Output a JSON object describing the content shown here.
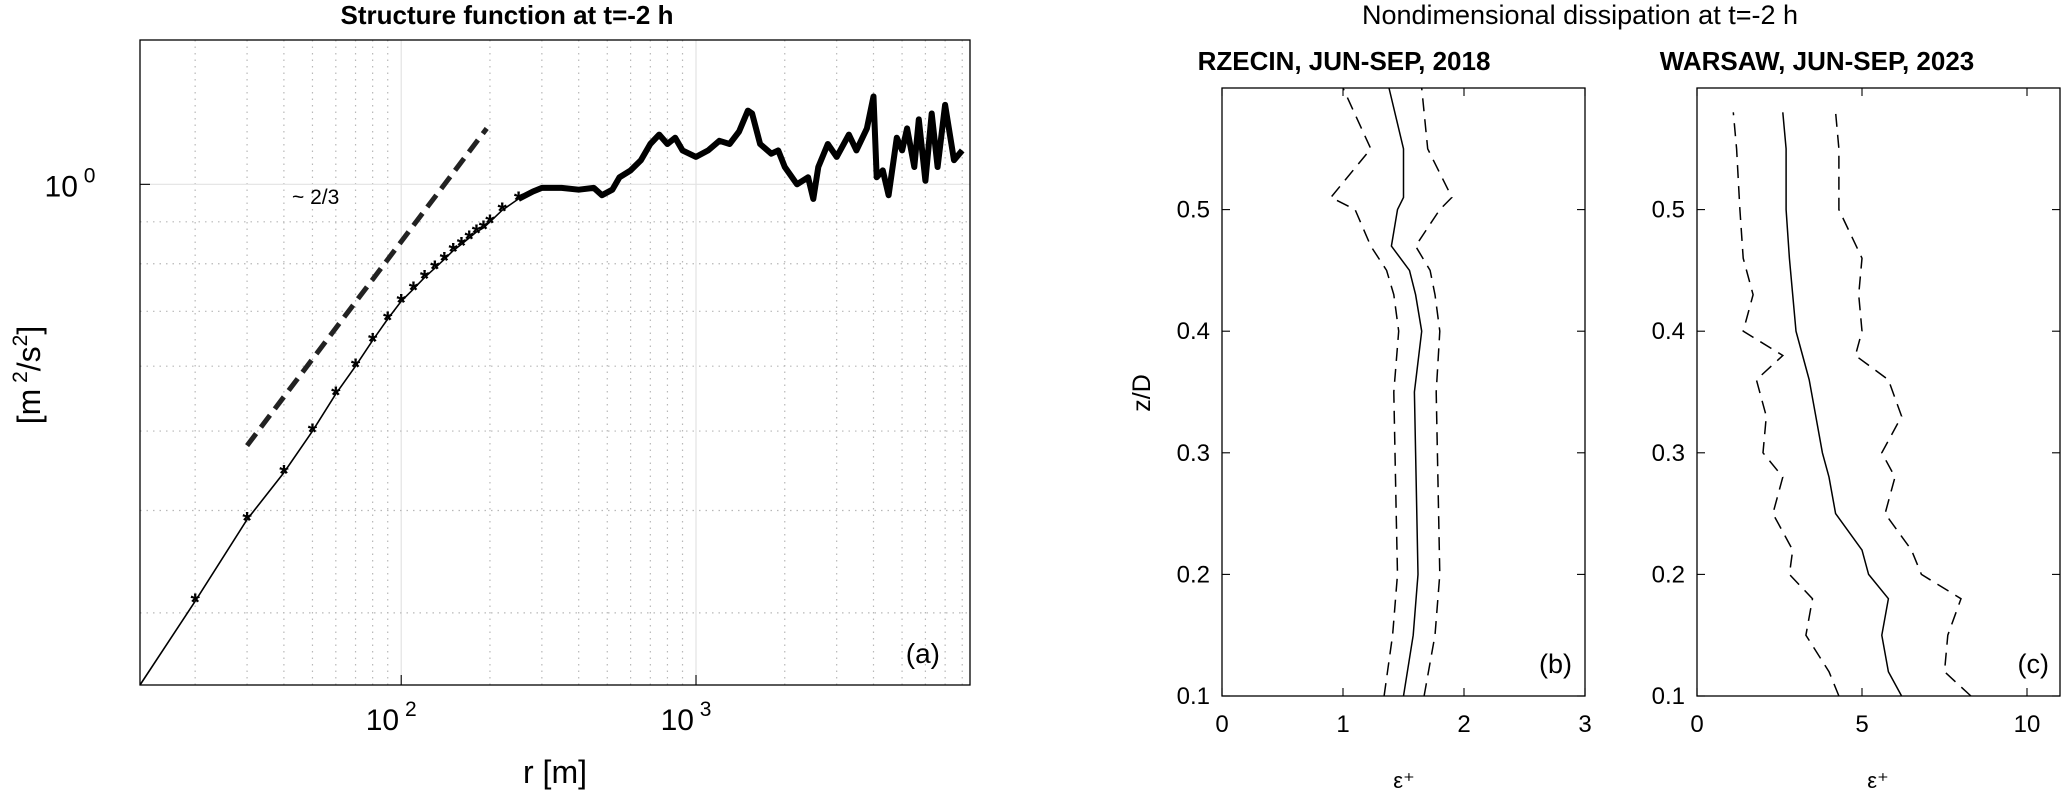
{
  "chart_data": [
    {
      "panel": "a",
      "type": "line",
      "title": "Structure function at t=-2 h",
      "xlabel": "r [m]",
      "ylabel": "[m 2/s2]",
      "x_scale": "log",
      "y_scale": "log",
      "xlim": [
        13,
        8500
      ],
      "ylim": [
        0.245,
        1.5
      ],
      "x_ticks": [
        {
          "value": 100,
          "base": "10",
          "exp": "2"
        },
        {
          "value": 1000,
          "base": "10",
          "exp": "3"
        }
      ],
      "y_ticks": [
        {
          "value": 1,
          "base": "10",
          "exp": "0"
        }
      ],
      "grid": true,
      "panel_label": "(a)",
      "slope_label": "~ 2/3",
      "slope_line": {
        "x": [
          30,
          195
        ],
        "y": [
          0.48,
          1.17
        ]
      },
      "series": [
        {
          "x": [
            13,
            20,
            30,
            40,
            50,
            60,
            70,
            80,
            90,
            100,
            110,
            120,
            130,
            140,
            150,
            160,
            170,
            180,
            190,
            200,
            220,
            250,
            280,
            300,
            350,
            400,
            450,
            480,
            520,
            550,
            600,
            650,
            700,
            750,
            800,
            850,
            900,
            1000,
            1100,
            1200,
            1300,
            1400,
            1500,
            1550,
            1650,
            1800,
            1900,
            2000,
            2200,
            2400,
            2500,
            2600,
            2800,
            3000,
            3300,
            3500,
            3800,
            4000,
            4100,
            4300,
            4500,
            4800,
            5000,
            5200,
            5500,
            5700,
            6000,
            6300,
            6600,
            7000,
            7500,
            8000
          ],
          "y": [
            0.245,
            0.31,
            0.39,
            0.445,
            0.5,
            0.555,
            0.6,
            0.645,
            0.685,
            0.72,
            0.745,
            0.77,
            0.79,
            0.81,
            0.83,
            0.845,
            0.86,
            0.875,
            0.885,
            0.9,
            0.93,
            0.96,
            0.98,
            0.99,
            0.99,
            0.985,
            0.99,
            0.97,
            0.985,
            1.02,
            1.04,
            1.07,
            1.12,
            1.15,
            1.12,
            1.14,
            1.1,
            1.08,
            1.1,
            1.13,
            1.12,
            1.16,
            1.23,
            1.22,
            1.12,
            1.09,
            1.1,
            1.05,
            1.0,
            1.02,
            0.96,
            1.05,
            1.12,
            1.08,
            1.15,
            1.1,
            1.17,
            1.28,
            1.02,
            1.04,
            0.97,
            1.14,
            1.1,
            1.17,
            1.05,
            1.2,
            1.01,
            1.22,
            1.05,
            1.25,
            1.07,
            1.1
          ]
        }
      ]
    },
    {
      "panel": "b",
      "type": "line",
      "suptitle": "Nondimensional dissipation at t=-2 h",
      "title": "RZECIN, JUN-SEP, 2018",
      "xlabel": "ε⁺",
      "ylabel": "z/D",
      "xlim": [
        0,
        3
      ],
      "ylim": [
        0.1,
        0.6
      ],
      "x_ticks": [
        0,
        1,
        2,
        3
      ],
      "y_ticks": [
        0.1,
        0.2,
        0.3,
        0.4,
        0.5
      ],
      "grid": false,
      "panel_label": "(b)",
      "y": [
        0.1,
        0.15,
        0.2,
        0.25,
        0.3,
        0.35,
        0.4,
        0.43,
        0.45,
        0.47,
        0.5,
        0.51,
        0.55,
        0.6
      ],
      "series": [
        {
          "style": "solid",
          "x": [
            1.5,
            1.58,
            1.62,
            1.61,
            1.6,
            1.59,
            1.65,
            1.6,
            1.55,
            1.4,
            1.45,
            1.5,
            1.5,
            1.38
          ]
        },
        {
          "style": "dashed",
          "x": [
            1.34,
            1.41,
            1.45,
            1.44,
            1.43,
            1.42,
            1.46,
            1.42,
            1.36,
            1.23,
            1.1,
            0.9,
            1.23,
            1.0
          ]
        },
        {
          "style": "dashed",
          "x": [
            1.67,
            1.76,
            1.8,
            1.79,
            1.78,
            1.77,
            1.8,
            1.76,
            1.72,
            1.6,
            1.8,
            1.9,
            1.7,
            1.65
          ]
        }
      ]
    },
    {
      "panel": "c",
      "type": "line",
      "title": "WARSAW, JUN-SEP, 2023",
      "xlabel": "ε⁺",
      "ylabel": "",
      "xlim": [
        0,
        11
      ],
      "ylim": [
        0.1,
        0.6
      ],
      "x_ticks": [
        0,
        5,
        10
      ],
      "y_ticks": [
        0.1,
        0.2,
        0.3,
        0.4,
        0.5
      ],
      "grid": false,
      "panel_label": "(c)",
      "y": [
        0.1,
        0.12,
        0.15,
        0.18,
        0.2,
        0.22,
        0.25,
        0.28,
        0.3,
        0.33,
        0.36,
        0.38,
        0.4,
        0.43,
        0.46,
        0.5,
        0.55,
        0.58
      ],
      "series": [
        {
          "style": "solid",
          "x": [
            6.2,
            5.8,
            5.6,
            5.8,
            5.2,
            5.0,
            4.2,
            4.0,
            3.8,
            3.6,
            3.4,
            3.2,
            3.0,
            2.9,
            2.8,
            2.7,
            2.7,
            2.6
          ]
        },
        {
          "style": "dashed",
          "x": [
            4.3,
            4.0,
            3.3,
            3.5,
            2.8,
            2.9,
            2.3,
            2.6,
            2.0,
            2.1,
            1.8,
            2.6,
            1.4,
            1.7,
            1.4,
            1.3,
            1.2,
            1.1
          ]
        },
        {
          "style": "dashed",
          "x": [
            8.3,
            7.5,
            7.6,
            8.0,
            6.8,
            6.5,
            5.7,
            6.0,
            5.6,
            6.2,
            5.8,
            4.8,
            5.0,
            4.9,
            5.0,
            4.3,
            4.3,
            4.2
          ]
        }
      ]
    }
  ]
}
